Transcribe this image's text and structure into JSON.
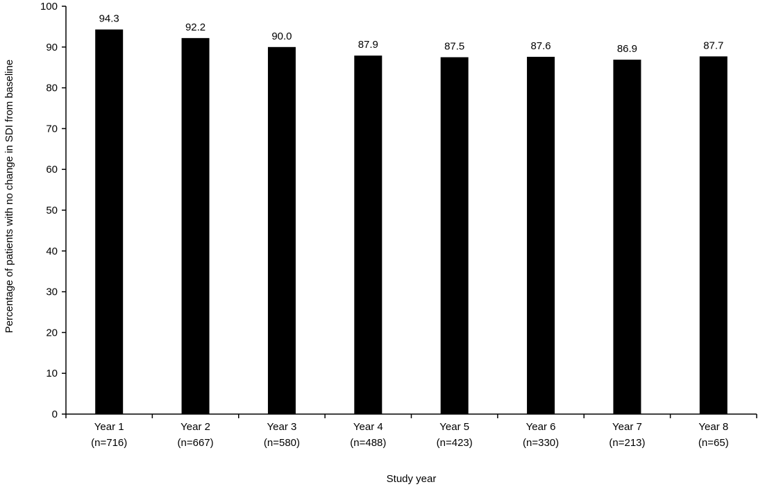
{
  "chart_data": {
    "type": "bar",
    "title": "",
    "xlabel": "Study year",
    "ylabel": "Percentage of patients with no change in SDI from baseline",
    "ylim": [
      0,
      100
    ],
    "yticks": [
      0,
      10,
      20,
      30,
      40,
      50,
      60,
      70,
      80,
      90,
      100
    ],
    "grid": false,
    "legend": "none",
    "bar_color": "#000000",
    "categories": [
      {
        "line1": "Year 1",
        "line2": "(n=716)"
      },
      {
        "line1": "Year 2",
        "line2": "(n=667)"
      },
      {
        "line1": "Year 3",
        "line2": "(n=580)"
      },
      {
        "line1": "Year 4",
        "line2": "(n=488)"
      },
      {
        "line1": "Year 5",
        "line2": "(n=423)"
      },
      {
        "line1": "Year 6",
        "line2": "(n=330)"
      },
      {
        "line1": "Year 7",
        "line2": "(n=213)"
      },
      {
        "line1": "Year 8",
        "line2": "(n=65)"
      }
    ],
    "values": [
      94.3,
      92.2,
      90.0,
      87.9,
      87.5,
      87.6,
      86.9,
      87.7
    ],
    "value_labels": [
      "94.3",
      "92.2",
      "90.0",
      "87.9",
      "87.5",
      "87.6",
      "86.9",
      "87.7"
    ]
  }
}
